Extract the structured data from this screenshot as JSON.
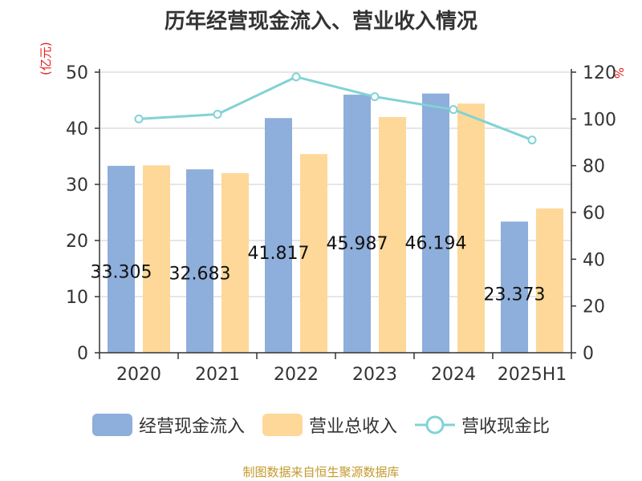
{
  "chart_data": {
    "type": "bar",
    "title": "历年经营现金流入、营业收入情况",
    "categories": [
      "2020",
      "2021",
      "2022",
      "2023",
      "2024",
      "2025H1"
    ],
    "series": [
      {
        "name": "经营现金流入",
        "type": "bar",
        "axis": "left",
        "values": [
          33.305,
          32.683,
          41.817,
          45.987,
          46.194,
          23.373
        ],
        "labels": [
          "33.305",
          "32.683",
          "41.817",
          "45.987",
          "46.194",
          "23.373"
        ]
      },
      {
        "name": "营业总收入",
        "type": "bar",
        "axis": "left",
        "values": [
          33.4,
          32.0,
          35.4,
          42.0,
          44.4,
          25.7
        ]
      },
      {
        "name": "营收现金比",
        "type": "line",
        "axis": "right",
        "values": [
          100,
          102,
          118,
          109.5,
          104,
          91
        ]
      }
    ],
    "y_left": {
      "label": "(亿元)",
      "ylim": [
        0,
        50
      ],
      "ticks": [
        0,
        10,
        20,
        30,
        40,
        50
      ]
    },
    "y_right": {
      "label": "%",
      "ylim": [
        0,
        120
      ],
      "ticks": [
        0,
        20,
        40,
        60,
        80,
        100,
        120
      ]
    },
    "grid": true,
    "legend_position": "bottom"
  },
  "colors": {
    "bar1": "#8eaedb",
    "bar2": "#fdd898",
    "line": "#82d2d6",
    "unit": "#e02020",
    "source": "#c49a2c"
  },
  "legend": {
    "items": [
      "经营现金流入",
      "营业总收入",
      "营收现金比"
    ]
  },
  "source": "制图数据来自恒生聚源数据库"
}
